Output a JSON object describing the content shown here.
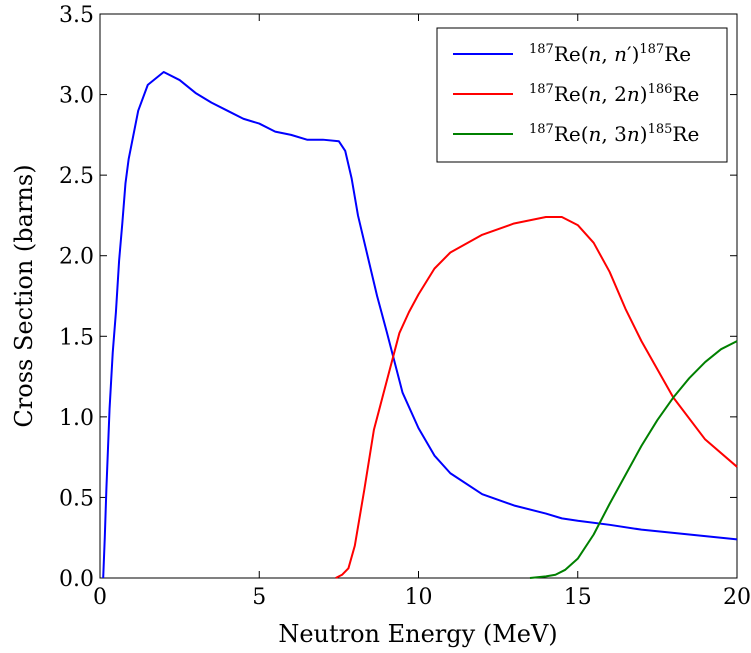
{
  "chart_data": {
    "type": "line",
    "title": "",
    "xlabel": "Neutron Energy (MeV)",
    "ylabel": "Cross Section (barns)",
    "xlim": [
      0,
      20
    ],
    "ylim": [
      0,
      3.5
    ],
    "x_ticks": [
      "0",
      "5",
      "10",
      "15",
      "20"
    ],
    "y_ticks": [
      "0.0",
      "0.5",
      "1.0",
      "1.5",
      "2.0",
      "2.5",
      "3.0",
      "3.5"
    ],
    "grid": false,
    "legend_position": "top-right",
    "series": [
      {
        "name": "187Re(n,n′)187Re",
        "legend": {
          "pre_sup": "187",
          "base": "Re(",
          "ital1": "n",
          "mid": ", ",
          "ital2": "n",
          "prime": "′",
          "close": ")",
          "post_sup": "187",
          "end": "Re"
        },
        "color": "#0000ff",
        "x": [
          0.1,
          0.15,
          0.2,
          0.3,
          0.4,
          0.5,
          0.6,
          0.7,
          0.8,
          0.9,
          1.0,
          1.2,
          1.5,
          2.0,
          2.5,
          3.0,
          3.5,
          4.0,
          4.5,
          5.0,
          5.5,
          6.0,
          6.5,
          7.0,
          7.5,
          7.7,
          7.9,
          8.1,
          8.4,
          8.7,
          9.0,
          9.5,
          10.0,
          10.5,
          11.0,
          12.0,
          13.0,
          14.0,
          14.5,
          15.0,
          16.0,
          17.0,
          18.0,
          19.0,
          20.0
        ],
        "y": [
          0.0,
          0.25,
          0.55,
          1.05,
          1.4,
          1.65,
          1.97,
          2.2,
          2.45,
          2.6,
          2.7,
          2.9,
          3.06,
          3.14,
          3.09,
          3.01,
          2.95,
          2.9,
          2.85,
          2.82,
          2.77,
          2.75,
          2.72,
          2.72,
          2.71,
          2.65,
          2.48,
          2.25,
          2.0,
          1.75,
          1.53,
          1.15,
          0.93,
          0.76,
          0.65,
          0.52,
          0.45,
          0.4,
          0.37,
          0.355,
          0.33,
          0.3,
          0.28,
          0.26,
          0.24
        ]
      },
      {
        "name": "187Re(n,2n)186Re",
        "legend": {
          "pre_sup": "187",
          "base": "Re(",
          "ital1": "n",
          "mid": ", 2",
          "ital2": "n",
          "prime": "",
          "close": ")",
          "post_sup": "186",
          "end": "Re"
        },
        "color": "#ff0000",
        "x": [
          7.4,
          7.6,
          7.8,
          8.0,
          8.3,
          8.6,
          9.0,
          9.4,
          9.7,
          10.0,
          10.5,
          11.0,
          12.0,
          13.0,
          13.5,
          14.0,
          14.5,
          15.0,
          15.5,
          16.0,
          16.5,
          17.0,
          18.0,
          19.0,
          20.0
        ],
        "y": [
          0.0,
          0.02,
          0.06,
          0.2,
          0.55,
          0.92,
          1.22,
          1.52,
          1.65,
          1.76,
          1.92,
          2.02,
          2.13,
          2.2,
          2.22,
          2.24,
          2.24,
          2.19,
          2.08,
          1.9,
          1.67,
          1.47,
          1.12,
          0.86,
          0.69
        ]
      },
      {
        "name": "187Re(n,3n)185Re",
        "legend": {
          "pre_sup": "187",
          "base": "Re(",
          "ital1": "n",
          "mid": ", 3",
          "ital2": "n",
          "prime": "",
          "close": ")",
          "post_sup": "185",
          "end": "Re"
        },
        "color": "#008000",
        "x": [
          13.5,
          14.0,
          14.3,
          14.6,
          15.0,
          15.5,
          16.0,
          16.5,
          17.0,
          17.5,
          18.0,
          18.5,
          19.0,
          19.5,
          20.0
        ],
        "y": [
          0.0,
          0.01,
          0.02,
          0.05,
          0.12,
          0.27,
          0.46,
          0.64,
          0.82,
          0.98,
          1.12,
          1.24,
          1.34,
          1.42,
          1.47
        ]
      }
    ]
  }
}
